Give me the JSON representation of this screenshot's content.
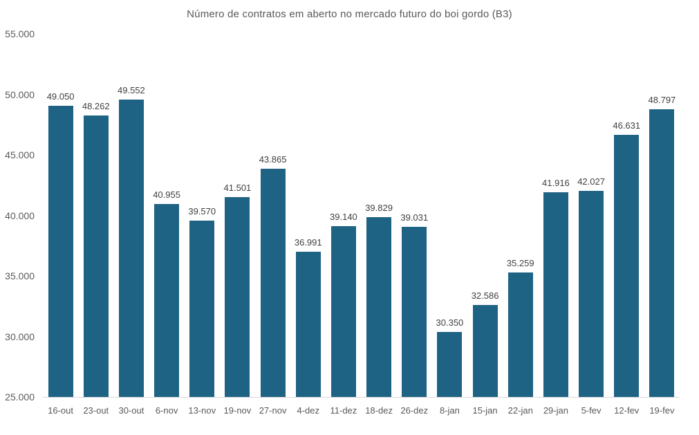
{
  "chart_data": {
    "type": "bar",
    "title": "Número de contratos em aberto no mercado futuro do boi gordo (B3)",
    "categories": [
      "16-out",
      "23-out",
      "30-out",
      "6-nov",
      "13-nov",
      "19-nov",
      "27-nov",
      "4-dez",
      "11-dez",
      "18-dez",
      "26-dez",
      "8-jan",
      "15-jan",
      "22-jan",
      "29-jan",
      "5-fev",
      "12-fev",
      "19-fev"
    ],
    "values": [
      49050,
      48262,
      49552,
      40955,
      39570,
      41501,
      43865,
      36991,
      39140,
      39829,
      39031,
      30350,
      32586,
      35259,
      41916,
      42027,
      46631,
      48797
    ],
    "value_labels": [
      "49.050",
      "48.262",
      "49.552",
      "40.955",
      "39.570",
      "41.501",
      "43.865",
      "36.991",
      "39.140",
      "39.829",
      "39.031",
      "30.350",
      "32.586",
      "35.259",
      "41.916",
      "42.027",
      "46.631",
      "48.797"
    ],
    "xlabel": "",
    "ylabel": "",
    "ylim": [
      25000,
      55000
    ],
    "ytick_step": 5000,
    "ytick_labels": [
      "25.000",
      "30.000",
      "35.000",
      "40.000",
      "45.000",
      "50.000",
      "55.000"
    ],
    "grid": false,
    "legend": "none",
    "colors": {
      "bar_fill": "#1E6284",
      "axis_line": "#D9D9D9",
      "title_text": "#595959",
      "tick_label_text": "#595959",
      "data_label_text": "#404040",
      "background": "#FFFFFF"
    }
  }
}
